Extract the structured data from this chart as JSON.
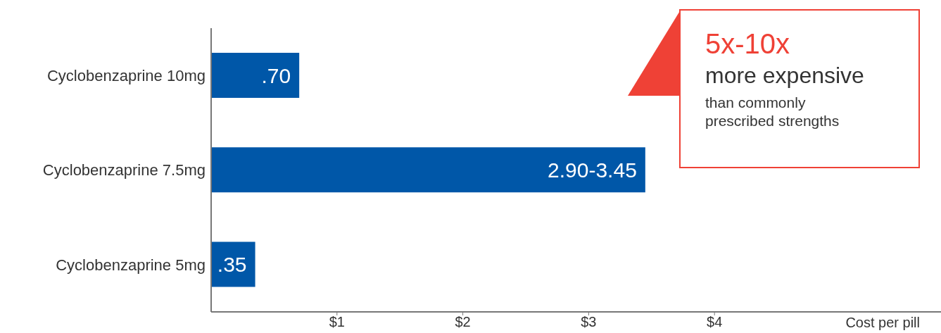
{
  "chart_data": {
    "type": "bar",
    "orientation": "horizontal",
    "categories": [
      "Cyclobenzaprine 10mg",
      "Cyclobenzaprine 7.5mg",
      "Cyclobenzaprine 5mg"
    ],
    "values": [
      0.7,
      3.45,
      0.35
    ],
    "value_labels": [
      ".70",
      "2.90-3.45",
      ".35"
    ],
    "color": "#0057a8",
    "xlim": [
      0,
      5.8
    ],
    "xticks": [
      {
        "value": 1,
        "label": "$1"
      },
      {
        "value": 2,
        "label": "$2"
      },
      {
        "value": 3,
        "label": "$3"
      },
      {
        "value": 4,
        "label": "$4"
      }
    ],
    "xlabel": "Cost per pill",
    "annotations": [
      "5x-10x",
      "more expensive",
      "than commonly prescribed strengths"
    ]
  }
}
